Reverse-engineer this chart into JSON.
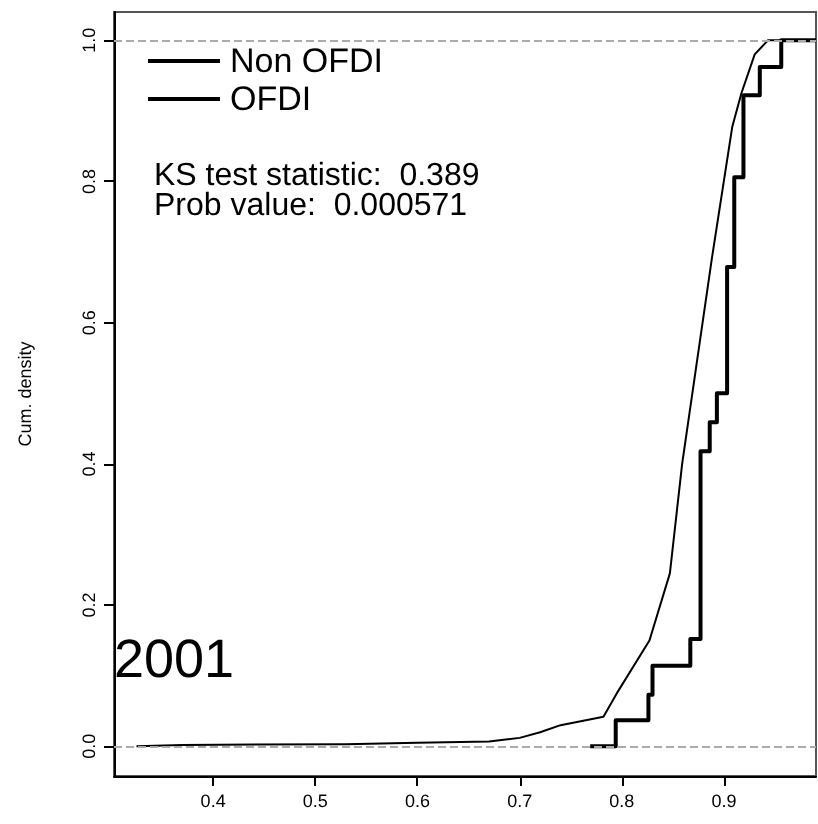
{
  "chart_data": {
    "type": "step",
    "ylabel": "Cum. density",
    "legend": "top left",
    "grid": false,
    "marker": "none",
    "line_style": "solid",
    "xlim": [
      0.303,
      0.99
    ],
    "ylim": [
      -0.042,
      1.04
    ],
    "xticks": [
      0.4,
      0.5,
      0.6,
      0.7,
      0.8,
      0.9
    ],
    "yticks": [
      {
        "value": 0,
        "label": "0.0"
      },
      {
        "value": 0.2,
        "label": "0.2"
      },
      {
        "value": 0.4,
        "label": "0.4"
      },
      {
        "value": 0.6,
        "label": "0.6"
      },
      {
        "value": 0.8,
        "label": "0.8"
      },
      {
        "value": 1,
        "label": "1.0"
      }
    ],
    "ref_lines": [
      {
        "axis": "y",
        "value": 0,
        "color": "#aaaaaa",
        "line_style": "dashed"
      },
      {
        "axis": "y",
        "value": 1,
        "color": "#aaaaaa",
        "line_style": "dashed"
      }
    ],
    "annotations": [
      "KS test statistic:  0.389",
      "Prob value:  0.000571",
      "2001"
    ],
    "series": [
      {
        "name": "Non OFDI",
        "type": "line",
        "color": "#000000",
        "x": [
          0.325,
          0.37,
          0.53,
          0.6,
          0.67,
          0.7,
          0.72,
          0.74,
          0.782,
          0.795,
          0.827,
          0.847,
          0.859,
          0.872,
          0.888,
          0.908,
          0.917,
          0.93,
          0.943,
          0.99
        ],
        "values": [
          0,
          0.002,
          0.003,
          0.005,
          0.007,
          0.012,
          0.02,
          0.03,
          0.042,
          0.075,
          0.15,
          0.245,
          0.4,
          0.53,
          0.69,
          0.877,
          0.925,
          0.98,
          1,
          1
        ]
      },
      {
        "name": "OFDI",
        "color": "#000000",
        "x": [
          0.769,
          0.794,
          0.826,
          0.83,
          0.867,
          0.877,
          0.886,
          0.893,
          0.903,
          0.91,
          0.919,
          0.935,
          0.956,
          0.99
        ],
        "values": [
          0,
          0.037,
          0.073,
          0.114,
          0.152,
          0.418,
          0.459,
          0.5,
          0.679,
          0.806,
          0.922,
          0.962,
          1,
          1
        ]
      }
    ]
  }
}
